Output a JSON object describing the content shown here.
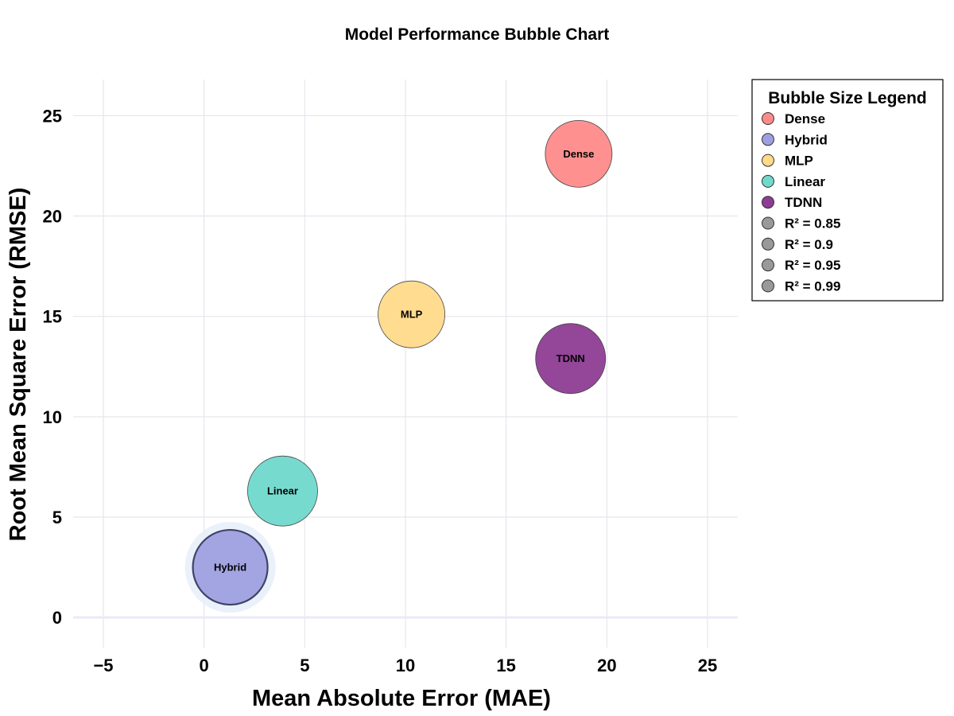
{
  "chart_data": {
    "type": "scatter",
    "title": "Model Performance Bubble Chart",
    "xlabel": "Mean Absolute Error (MAE)",
    "ylabel": "Root Mean Square Error (RMSE)",
    "xlim": [
      -6.5,
      26.5
    ],
    "ylim": [
      -1.5,
      26.8
    ],
    "x_ticks": [
      -5,
      0,
      5,
      10,
      15,
      20,
      25
    ],
    "x_tick_labels": [
      "−5",
      "0",
      "5",
      "10",
      "15",
      "20",
      "25"
    ],
    "y_ticks": [
      0,
      5,
      10,
      15,
      20,
      25
    ],
    "y_tick_labels": [
      "0",
      "5",
      "10",
      "15",
      "20",
      "25"
    ],
    "grid": true,
    "legend_placement": "right",
    "points": [
      {
        "name": "Dense",
        "x": 18.6,
        "y": 23.1,
        "r2": 0.85,
        "color": "#FF8A8A",
        "label": "Dense"
      },
      {
        "name": "Hybrid",
        "x": 1.3,
        "y": 2.5,
        "r2": 0.99,
        "color": "#9F9FE0",
        "label": "Hybrid",
        "highlight": true
      },
      {
        "name": "MLP",
        "x": 10.3,
        "y": 15.1,
        "r2": 0.85,
        "color": "#FFDA8A",
        "label": "MLP"
      },
      {
        "name": "Linear",
        "x": 3.9,
        "y": 6.3,
        "r2": 0.95,
        "color": "#70D8CC",
        "label": "Linear"
      },
      {
        "name": "TDNN",
        "x": 18.2,
        "y": 12.9,
        "r2": 0.9,
        "color": "#8E3C94",
        "label": "TDNN"
      }
    ]
  },
  "legend": {
    "title": "Bubble Size Legend",
    "items": [
      {
        "label": "Dense",
        "color": "#FF8A8A"
      },
      {
        "label": "Hybrid",
        "color": "#9F9FE0"
      },
      {
        "label": "MLP",
        "color": "#FFDA8A"
      },
      {
        "label": "Linear",
        "color": "#70D8CC"
      },
      {
        "label": "TDNN",
        "color": "#8E3C94"
      },
      {
        "label": "R² = 0.85",
        "color": "#999999"
      },
      {
        "label": "R² = 0.9",
        "color": "#999999"
      },
      {
        "label": "R² = 0.95",
        "color": "#999999"
      },
      {
        "label": "R² = 0.99",
        "color": "#999999"
      }
    ]
  }
}
